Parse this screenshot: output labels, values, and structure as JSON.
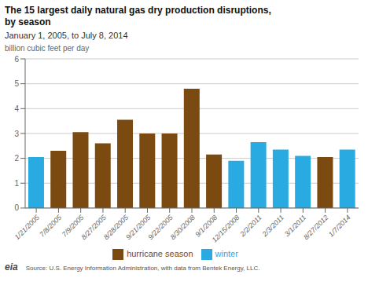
{
  "chart_data": {
    "type": "bar",
    "title": "The 15 largest daily natural gas dry production disruptions,\nby season",
    "subtitle": "January 1, 2005, to July 8, 2014",
    "ylabel": "billion cubic feet per day",
    "categories": [
      "1/21/2005",
      "7/8/2005",
      "7/9/2005",
      "8/27/2005",
      "8/28/2005",
      "9/21/2005",
      "9/22/2005",
      "8/30/2008",
      "9/1/2008",
      "12/15/2008",
      "2/2/2011",
      "2/3/2011",
      "3/1/2011",
      "8/27/2012",
      "1/7/2014"
    ],
    "series": [
      {
        "name": "hurricane season",
        "color": "#7B4A10",
        "values": [
          null,
          2.3,
          3.05,
          2.6,
          3.55,
          3.0,
          3.0,
          4.8,
          2.15,
          null,
          null,
          null,
          null,
          2.05,
          null
        ]
      },
      {
        "name": "winter",
        "color": "#29ABE2",
        "values": [
          2.05,
          null,
          null,
          null,
          null,
          null,
          null,
          null,
          null,
          1.9,
          2.65,
          2.35,
          2.1,
          null,
          2.35
        ]
      }
    ],
    "stacked": true,
    "ylim": [
      0,
      6
    ],
    "yticks": [
      0,
      1,
      2,
      3,
      4,
      5,
      6
    ],
    "grid": true,
    "legend": "bottom",
    "annotations": [
      "eia",
      "Source: U.S. Energy Information Administration, with data from Bentek Energy, LLC."
    ]
  }
}
